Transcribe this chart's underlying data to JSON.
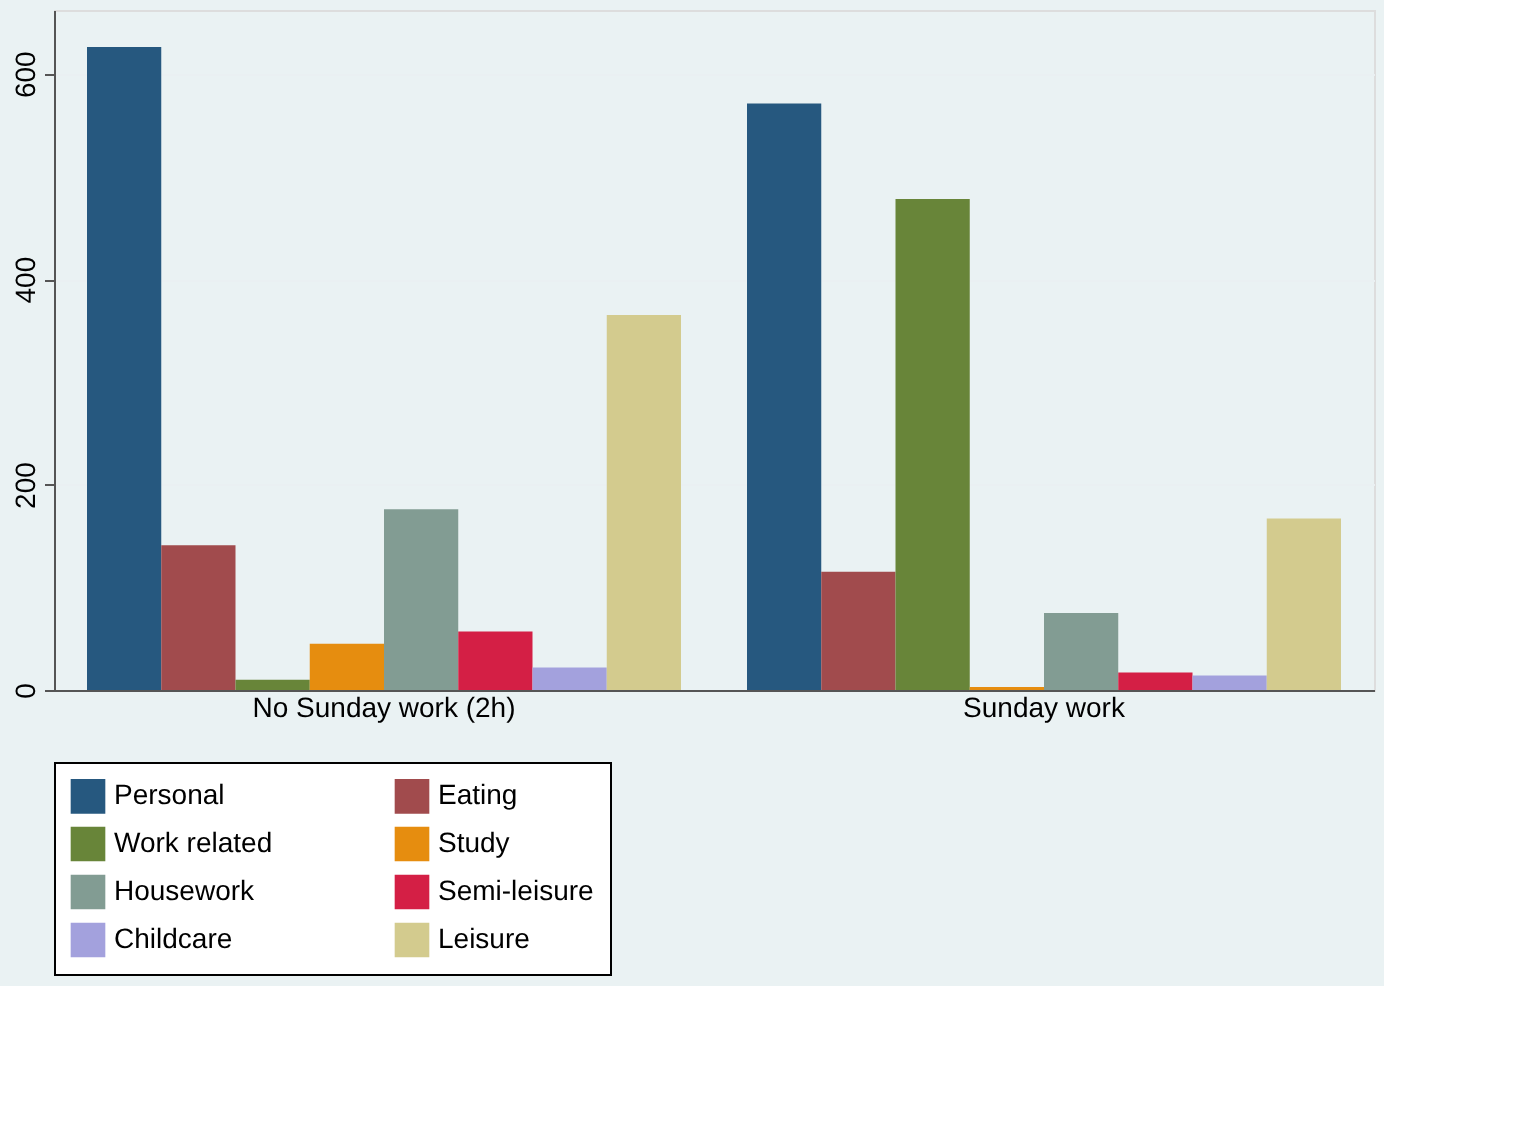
{
  "chart_data": {
    "type": "bar",
    "categories": [
      "No Sunday work (2h)",
      "Sunday work"
    ],
    "series": [
      {
        "name": "Personal",
        "color": "#26587f",
        "values": [
          626,
          571
        ]
      },
      {
        "name": "Eating",
        "color": "#a14b4d",
        "values": [
          141,
          115
        ]
      },
      {
        "name": "Work related",
        "color": "#688539",
        "values": [
          10,
          478
        ]
      },
      {
        "name": "Study",
        "color": "#e68d0f",
        "values": [
          45,
          3
        ]
      },
      {
        "name": "Housework",
        "color": "#829c93",
        "values": [
          176,
          75
        ]
      },
      {
        "name": "Semi-leisure",
        "color": "#d41f45",
        "values": [
          57,
          17
        ]
      },
      {
        "name": "Childcare",
        "color": "#a3a1dd",
        "values": [
          22,
          14
        ]
      },
      {
        "name": "Leisure",
        "color": "#d3cb8e",
        "values": [
          365,
          167
        ]
      }
    ],
    "ylim": [
      0,
      662
    ],
    "yticks": [
      0,
      200,
      400,
      600
    ],
    "grid": "y",
    "legend": "bottom"
  }
}
